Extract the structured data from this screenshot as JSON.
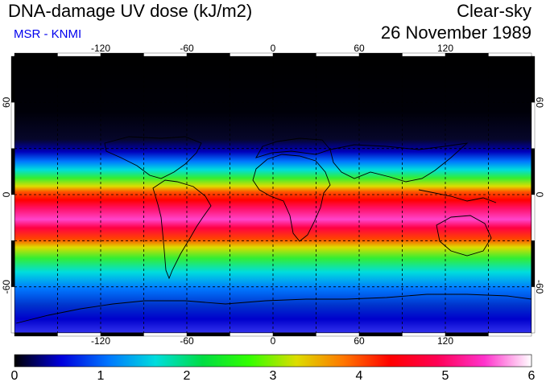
{
  "header": {
    "title": "DNA-damage UV dose (kJ/m2)",
    "subtitle": "MSR - KNMI",
    "sky_condition": "Clear-sky",
    "date": "26 November 1989"
  },
  "map": {
    "lon_ticks": [
      "-120",
      "-60",
      "0",
      "60",
      "120"
    ],
    "lat_ticks": [
      "60",
      "0",
      "-60"
    ],
    "colors": {
      "ocean_polar": "#000010",
      "gridline": "#000000",
      "coastline": "#000000"
    }
  },
  "colorbar": {
    "labels": [
      "0",
      "1",
      "2",
      "3",
      "4",
      "5",
      "6"
    ],
    "stops": [
      "#000000",
      "#0000dd",
      "#0077ff",
      "#00dddd",
      "#00dd44",
      "#33ff00",
      "#dddd00",
      "#ff7700",
      "#ff0000",
      "#ff0055",
      "#ff33cc",
      "#ffffff"
    ]
  }
}
